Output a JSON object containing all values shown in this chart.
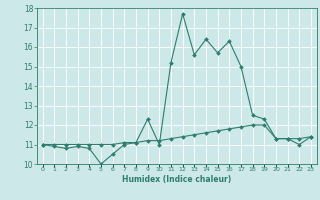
{
  "xlabel": "Humidex (Indice chaleur)",
  "x": [
    0,
    1,
    2,
    3,
    4,
    5,
    6,
    7,
    8,
    9,
    10,
    11,
    12,
    13,
    14,
    15,
    16,
    17,
    18,
    19,
    20,
    21,
    22,
    23
  ],
  "line1": [
    11.0,
    10.9,
    10.8,
    10.9,
    10.8,
    10.0,
    10.5,
    11.0,
    11.1,
    12.3,
    11.0,
    15.2,
    17.7,
    15.6,
    16.4,
    15.7,
    16.3,
    15.0,
    12.5,
    12.3,
    11.3,
    11.3,
    11.0,
    11.4
  ],
  "line2": [
    11.0,
    11.0,
    11.0,
    11.0,
    11.0,
    11.0,
    11.0,
    11.1,
    11.1,
    11.2,
    11.2,
    11.3,
    11.4,
    11.5,
    11.6,
    11.7,
    11.8,
    11.9,
    12.0,
    12.0,
    11.3,
    11.3,
    11.3,
    11.4
  ],
  "ylim": [
    10,
    18
  ],
  "yticks": [
    10,
    11,
    12,
    13,
    14,
    15,
    16,
    17,
    18
  ],
  "line_color": "#2e7d6e",
  "bg_color": "#cce8e8",
  "grid_color": "#ffffff"
}
